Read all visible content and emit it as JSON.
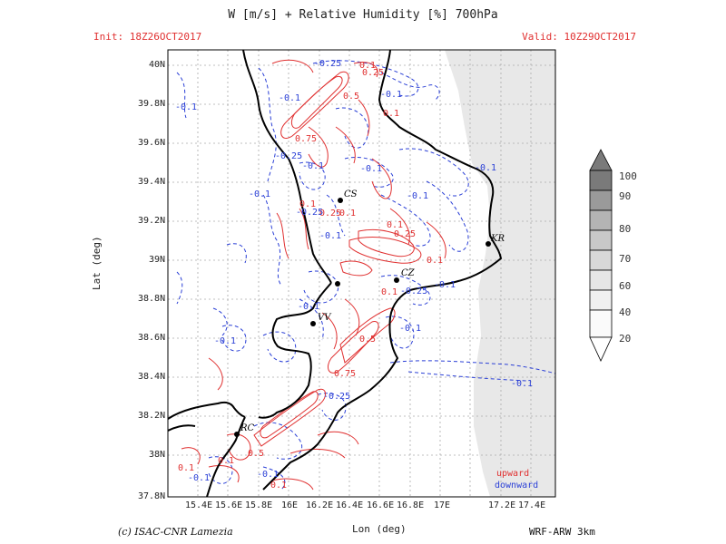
{
  "header": {
    "title": "W [m/s] + Relative Humidity [%] 700hPa",
    "init": "Init: 18Z26OCT2017",
    "valid": "Valid: 10Z29OCT2017"
  },
  "axes": {
    "x_label": "Lon (deg)",
    "y_label": "Lat (deg)",
    "x_ticks": [
      "15.4E",
      "15.6E",
      "15.8E",
      "16E",
      "16.2E",
      "16.4E",
      "16.6E",
      "16.8E",
      "17E",
      "17.2E",
      "17.4E"
    ],
    "y_ticks": [
      "40N",
      "39.8N",
      "39.6N",
      "39.4N",
      "39.2N",
      "39N",
      "38.8N",
      "38.6N",
      "38.4N",
      "38.2N",
      "38N",
      "37.8N"
    ]
  },
  "legend": {
    "upward": "upward",
    "downward": "downward",
    "upward_color": "#e03030",
    "downward_color": "#2a3fd6"
  },
  "colorbar": {
    "labels": [
      "100",
      "90",
      "80",
      "70",
      "60",
      "40",
      "20"
    ]
  },
  "cities": [
    {
      "code": "CS"
    },
    {
      "code": "KR"
    },
    {
      "code": "CZ"
    },
    {
      "code": "VV"
    },
    {
      "code": "RC"
    }
  ],
  "contour_labels": {
    "red": [
      "0.1",
      "0.25",
      "0.5",
      "0.75",
      "0.1",
      "0.1",
      "0.25",
      "0.1",
      "0.1",
      "0.25",
      "0.1",
      "0.5",
      "0.75",
      "0.1",
      "0.1",
      "0.5",
      "0.1",
      "0.1"
    ],
    "blue": [
      "-0.25",
      "-0.1",
      "-0.1",
      "-0.1",
      "-0.25",
      "-0.1",
      "-0.1",
      "-0.1",
      "-0.1",
      "-0.25",
      "-0.1",
      "-0.1",
      "-0.1",
      "-0.1",
      "-0.1",
      "-0.25",
      "-0.25",
      "-0.1",
      "-0.1",
      "-0.1",
      "-0.1"
    ]
  },
  "footer": {
    "copyright": "(c) ISAC-CNR Lamezia",
    "model": "WRF-ARW 3km"
  }
}
